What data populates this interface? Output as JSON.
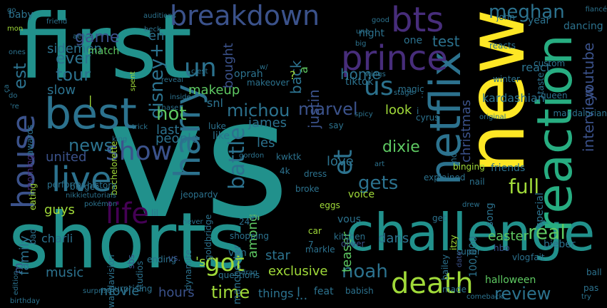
{
  "colors": {
    "background": "#000000",
    "yellow": "#fde725",
    "teal": "#21918c",
    "dark_teal": "#2c728e",
    "purple": "#440154",
    "indigo": "#3b528b",
    "green": "#5ec962",
    "light_green": "#a0da39",
    "sea_green": "#27ad81",
    "violet": "#472d7b"
  },
  "words": [
    {
      "text": "first"
    },
    {
      "text": "new"
    },
    {
      "text": "vs"
    },
    {
      "text": "shorts"
    },
    {
      "text": "challenge"
    },
    {
      "text": "reaction"
    },
    {
      "text": "netflix"
    },
    {
      "text": "best"
    },
    {
      "text": "live"
    },
    {
      "text": "house"
    },
    {
      "text": "prince"
    },
    {
      "text": "bts"
    },
    {
      "text": "breakdown"
    },
    {
      "text": "harry"
    },
    {
      "text": "show"
    },
    {
      "text": "life"
    },
    {
      "text": "death"
    },
    {
      "text": "us"
    },
    {
      "text": "un"
    },
    {
      "text": "got"
    },
    {
      "text": "et"
    },
    {
      "text": "battle"
    },
    {
      "text": "disney+"
    },
    {
      "text": "est"
    },
    {
      "text": "meghan"
    },
    {
      "text": "interview"
    },
    {
      "text": "youtube"
    },
    {
      "text": "christmas"
    },
    {
      "text": "full"
    },
    {
      "text": "real"
    },
    {
      "text": "review"
    },
    {
      "text": "time"
    },
    {
      "text": "noah"
    },
    {
      "text": "dixie"
    },
    {
      "text": "gets"
    },
    {
      "text": "hot"
    },
    {
      "text": "news"
    },
    {
      "text": "tour"
    },
    {
      "text": "ever"
    },
    {
      "text": "game"
    },
    {
      "text": "home"
    },
    {
      "text": "test"
    },
    {
      "text": "michou"
    },
    {
      "text": "marvel"
    },
    {
      "text": "makeup"
    },
    {
      "text": "justin"
    },
    {
      "text": "people"
    },
    {
      "text": "slow"
    },
    {
      "text": "sidemen"
    },
    {
      "text": "en"
    },
    {
      "text": "bought"
    },
    {
      "text": "back"
    },
    {
      "text": "a"
    },
    {
      "text": "united"
    },
    {
      "text": "last"
    },
    {
      "text": "james"
    },
    {
      "text": "les"
    },
    {
      "text": "love"
    },
    {
      "text": "guys"
    },
    {
      "text": "teaser"
    },
    {
      "text": "among"
    },
    {
      "text": "dans"
    },
    {
      "text": "star"
    },
    {
      "text": "exclusive"
    },
    {
      "text": "music"
    },
    {
      "text": "movie"
    },
    {
      "text": "hours"
    },
    {
      "text": "things"
    },
    {
      "text": "l"
    },
    {
      "text": "m"
    },
    {
      "text": "family"
    },
    {
      "text": "charli"
    },
    {
      "text": "easter"
    },
    {
      "text": "friends"
    },
    {
      "text": "kardashian"
    },
    {
      "text": "react"
    },
    {
      "text": "look"
    },
    {
      "text": "snl"
    },
    {
      "text": "like"
    },
    {
      "text": "tiktok"
    },
    {
      "text": "oprah"
    },
    {
      "text": "night"
    },
    {
      "text": "one"
    },
    {
      "text": "year"
    },
    {
      "text": "dancing"
    },
    {
      "text": "match"
    },
    {
      "text": "baby"
    },
    {
      "text": "john"
    },
    {
      "text": "halloween"
    },
    {
      "text": "bieber"
    },
    {
      "text": "song"
    },
    {
      "text": "hbo"
    },
    {
      "text": "100,000"
    },
    {
      "text": "voice"
    },
    {
      "text": "eggs"
    },
    {
      "text": "car"
    },
    {
      "text": "4k"
    },
    {
      "text": "feat"
    },
    {
      "text": "babish"
    },
    {
      "text": "vous"
    },
    {
      "text": "manchester"
    },
    {
      "text": "van"
    },
    {
      "text": "wandavision"
    },
    {
      "text": "surprising"
    },
    {
      "text": "eating"
    },
    {
      "text": "morning"
    },
    {
      "text": "awards"
    },
    {
      "text": "bachelorette"
    },
    {
      "text": "dynamite"
    },
    {
      "text": "goldbridge"
    },
    {
      "text": "studios"
    },
    {
      "text": "ending"
    },
    {
      "text": "sbs"
    },
    {
      "text": "questions"
    },
    {
      "text": "shopping"
    },
    {
      "text": "markle"
    },
    {
      "text": "oliver"
    },
    {
      "text": "kitchen"
    },
    {
      "text": "bailey"
    },
    {
      "text": "itzy"
    },
    {
      "text": "super"
    },
    {
      "text": "get"
    },
    {
      "text": "ball"
    },
    {
      "text": "pas"
    },
    {
      "text": "try"
    },
    {
      "text": "made"
    },
    {
      "text": "comeback"
    },
    {
      "text": "vlog"
    },
    {
      "text": "fait"
    },
    {
      "text": "nail"
    },
    {
      "text": "drew"
    },
    {
      "text": "special"
    },
    {
      "text": "mandalorian"
    },
    {
      "text": "queen"
    },
    {
      "text": "custom"
    },
    {
      "text": "taste"
    },
    {
      "text": "reacts"
    },
    {
      "text": "winter"
    },
    {
      "text": "say"
    },
    {
      "text": "kwktk"
    },
    {
      "text": "gordon"
    },
    {
      "text": "king"
    },
    {
      "text": "history"
    },
    {
      "text": "jeopardy"
    },
    {
      "text": "lil"
    },
    {
      "text": "never"
    },
    {
      "text": "pokémon"
    },
    {
      "text": "burger"
    },
    {
      "text": "bad"
    },
    {
      "text": "original"
    },
    {
      "text": "mo"
    },
    {
      "text": "explained"
    },
    {
      "text": "binging"
    },
    {
      "text": "art"
    },
    {
      "text": "dress"
    },
    {
      "text": "broke"
    },
    {
      "text": "cyrus"
    },
    {
      "text": "magic"
    },
    {
      "text": "stage"
    },
    {
      "text": "wings"
    },
    {
      "text": "spicy"
    },
    {
      "text": "makeover"
    },
    {
      "text": "w/"
    },
    {
      "text": "c'est"
    },
    {
      "text": "inside"
    },
    {
      "text": "reveal"
    },
    {
      "text": "chase"
    },
    {
      "text": "trick"
    },
    {
      "text": "luke"
    },
    {
      "text": "24"
    },
    {
      "text": "gq"
    },
    {
      "text": "date"
    },
    {
      "text": "birthday"
    },
    {
      "text": "edition"
    },
    {
      "text": "surprise"
    },
    {
      "text": "vs."
    },
    {
      "text": "drag"
    },
    {
      "text": "ones"
    },
    {
      "text": "mon"
    },
    {
      "text": "friend"
    },
    {
      "text": "aew"
    },
    {
      "text": "beck"
    },
    {
      "text": "spent"
    },
    {
      "text": "nikkietutorials"
    },
    {
      "text": "auditions"
    },
    {
      "text": "good"
    },
    {
      "text": "big"
    },
    {
      "text": "une"
    },
    {
      "text": "fiancé"
    },
    {
      "text": "do"
    },
    {
      "text": "ça"
    },
    {
      "text": "performs"
    },
    {
      "text": "'re"
    },
    {
      "text": "'s"
    },
    {
      "text": "?"
    },
    {
      "text": ":"
    },
    {
      "text": "..."
    },
    {
      "text": "|"
    },
    {
      "text": "i"
    },
    {
      "text": "7"
    },
    {
      "text": "go"
    }
  ]
}
